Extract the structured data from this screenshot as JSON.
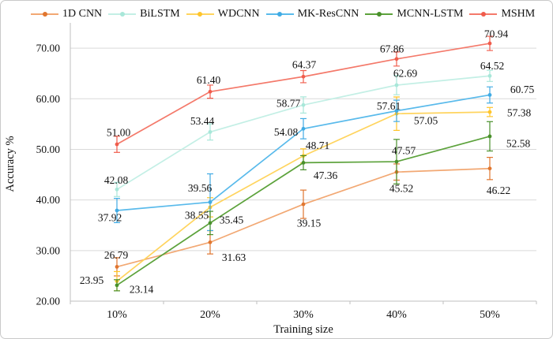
{
  "chart_data": {
    "type": "line",
    "title": "",
    "xlabel": "Training size",
    "ylabel": "Accuracy %",
    "categories": [
      "10%",
      "20%",
      "30%",
      "40%",
      "50%"
    ],
    "ylim": [
      20,
      75
    ],
    "ytick_start": 20,
    "ytick_end": 70,
    "ytick_step": 10,
    "grid": "horizontal-only",
    "legend_position": "top",
    "axis_color": "#bfbfbf",
    "grid_color": "#d9d9d9",
    "text_color": "#111111",
    "series": [
      {
        "name": "1D CNN",
        "color": "#F2A873",
        "marker_color": "#E0762F",
        "values": [
          26.79,
          31.63,
          39.15,
          45.52,
          46.22
        ],
        "errors": [
          1.8,
          2.3,
          2.8,
          1.6,
          2.2
        ],
        "label_offsets": [
          [
            -1,
            -15
          ],
          [
            30,
            19
          ],
          [
            7,
            24
          ],
          [
            6,
            21
          ],
          [
            11,
            28
          ]
        ]
      },
      {
        "name": "BiLSTM",
        "color": "#C3EFE5",
        "marker_color": "#A8E7D9",
        "values": [
          42.08,
          53.44,
          58.77,
          62.69,
          64.52
        ],
        "errors": [
          1.4,
          1.6,
          1.6,
          1.9,
          1.1
        ],
        "label_offsets": [
          [
            -1,
            -12
          ],
          [
            -10,
            -14
          ],
          [
            -19,
            -2
          ],
          [
            11,
            -15
          ],
          [
            3,
            -13
          ]
        ]
      },
      {
        "name": "WDCNN",
        "color": "#FFD45E",
        "marker_color": "#FFC52B",
        "values": [
          23.95,
          38.55,
          48.71,
          57.05,
          57.38
        ],
        "errors": [
          1.9,
          1.9,
          1.4,
          3.3,
          0.9
        ],
        "label_offsets": [
          [
            -32,
            -1
          ],
          [
            -17,
            10
          ],
          [
            18,
            -13
          ],
          [
            37,
            9
          ],
          [
            37,
            1
          ]
        ]
      },
      {
        "name": "MK-ResCNN",
        "color": "#59BAEB",
        "marker_color": "#41ABE4",
        "values": [
          37.92,
          39.56,
          54.08,
          57.61,
          60.75
        ],
        "errors": [
          2.4,
          5.6,
          2.0,
          2.1,
          1.6
        ],
        "label_offsets": [
          [
            -9,
            9
          ],
          [
            -13,
            -18
          ],
          [
            -22,
            4
          ],
          [
            -10,
            -6
          ],
          [
            41,
            -7
          ]
        ]
      },
      {
        "name": "MCNN-LSTM",
        "color": "#5CA23B",
        "marker_color": "#49902B",
        "values": [
          23.14,
          35.45,
          47.36,
          47.57,
          52.58
        ],
        "errors": [
          1.1,
          2.3,
          1.4,
          4.4,
          2.9
        ],
        "label_offsets": [
          [
            31,
            5
          ],
          [
            27,
            -4
          ],
          [
            28,
            16
          ],
          [
            9,
            -14
          ],
          [
            36,
            9
          ]
        ]
      },
      {
        "name": "MSHM",
        "color": "#F4796A",
        "marker_color": "#F05C4C",
        "values": [
          51.0,
          61.4,
          64.37,
          67.86,
          70.94
        ],
        "errors": [
          1.6,
          1.3,
          1.2,
          1.4,
          1.4
        ],
        "label_offsets": [
          [
            2,
            -15
          ],
          [
            -2,
            -15
          ],
          [
            1,
            -15
          ],
          [
            -6,
            -13
          ],
          [
            8,
            -12
          ]
        ]
      }
    ]
  }
}
